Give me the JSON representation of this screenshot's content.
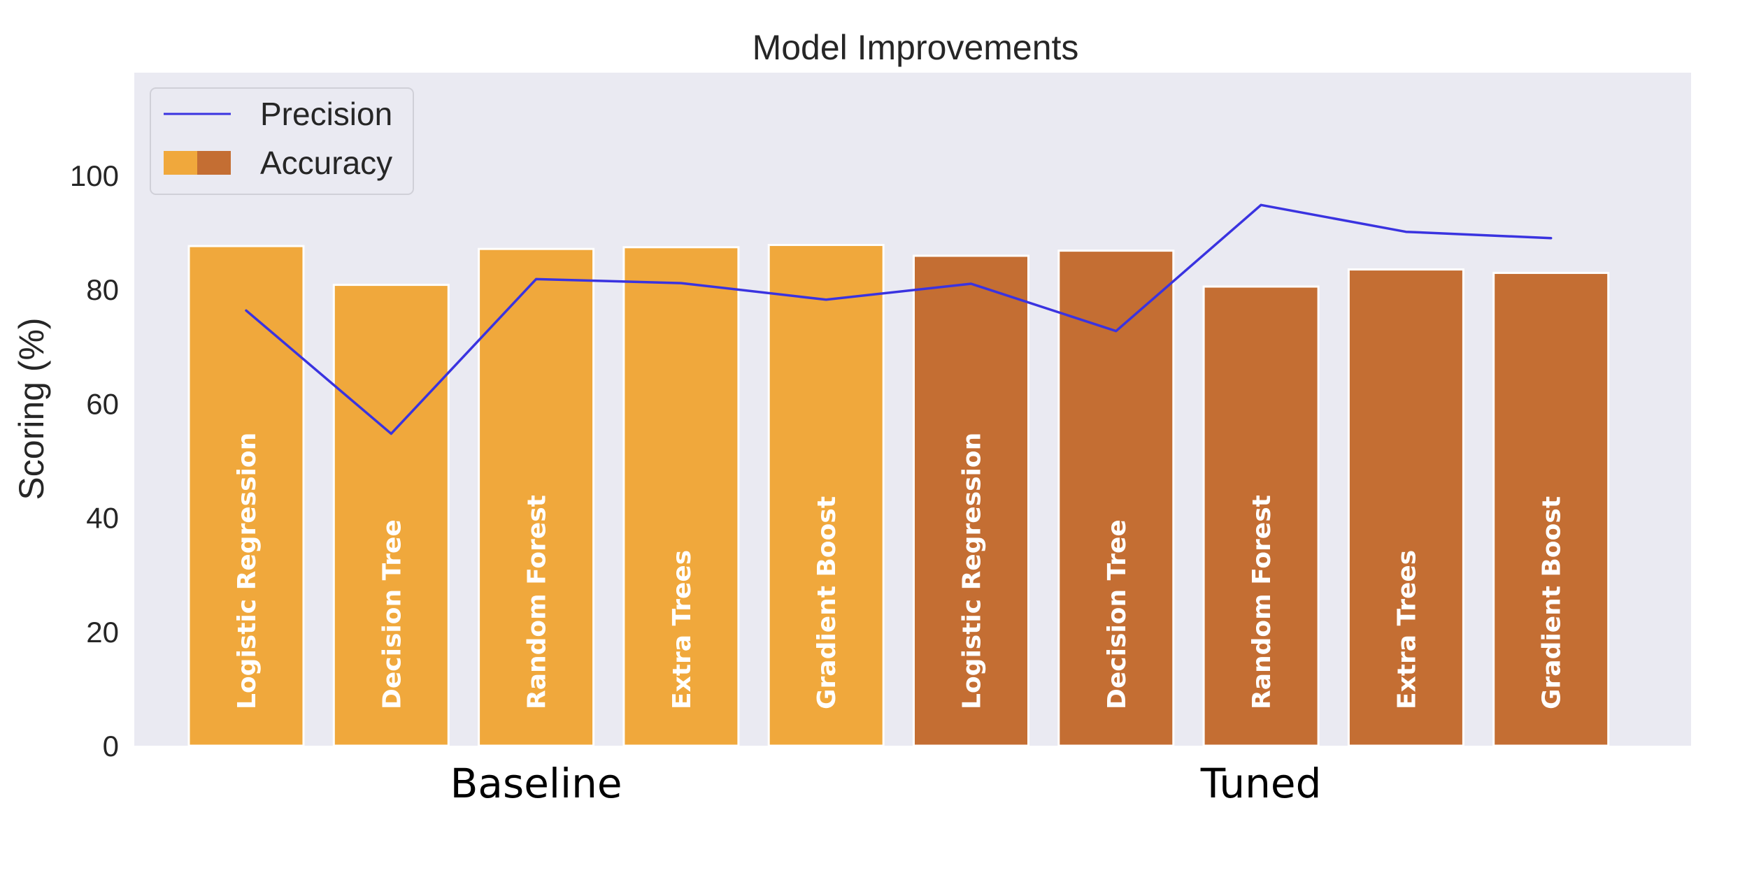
{
  "chart_data": {
    "type": "bar",
    "title": "Model Improvements",
    "ylabel": "Scoring (%)",
    "xlabel": "",
    "ylim": [
      0,
      118
    ],
    "yticks": [
      0,
      20,
      40,
      60,
      80,
      100
    ],
    "grid": false,
    "legend_position": "top-left",
    "legend": [
      {
        "name": "Precision",
        "kind": "line",
        "color": "#3a33e0"
      },
      {
        "name": "Accuracy",
        "kind": "bar",
        "colors": [
          "#f0a83c",
          "#c46e33"
        ]
      }
    ],
    "groups": [
      {
        "label": "Baseline",
        "color": "#f0a83c",
        "categories": [
          "Logistic Regression",
          "Decision Tree",
          "Random Forest",
          "Extra Trees",
          "Gradient Boost"
        ]
      },
      {
        "label": "Tuned",
        "color": "#c46e33",
        "categories": [
          "Logistic Regression",
          "Decision Tree",
          "Random Forest",
          "Extra Trees",
          "Gradient Boost"
        ]
      }
    ],
    "series": [
      {
        "name": "Accuracy",
        "kind": "bar",
        "values": [
          87.6,
          80.8,
          87.1,
          87.4,
          87.8,
          85.9,
          86.8,
          80.5,
          83.5,
          82.9
        ]
      },
      {
        "name": "Precision",
        "kind": "line",
        "color": "#3a33e0",
        "values": [
          76.3,
          54.7,
          81.8,
          81.1,
          78.2,
          81.0,
          72.7,
          94.8,
          90.1,
          89.0
        ]
      }
    ]
  },
  "colors": {
    "plot_background": "#eaeaf2",
    "page_background": "#ffffff"
  }
}
